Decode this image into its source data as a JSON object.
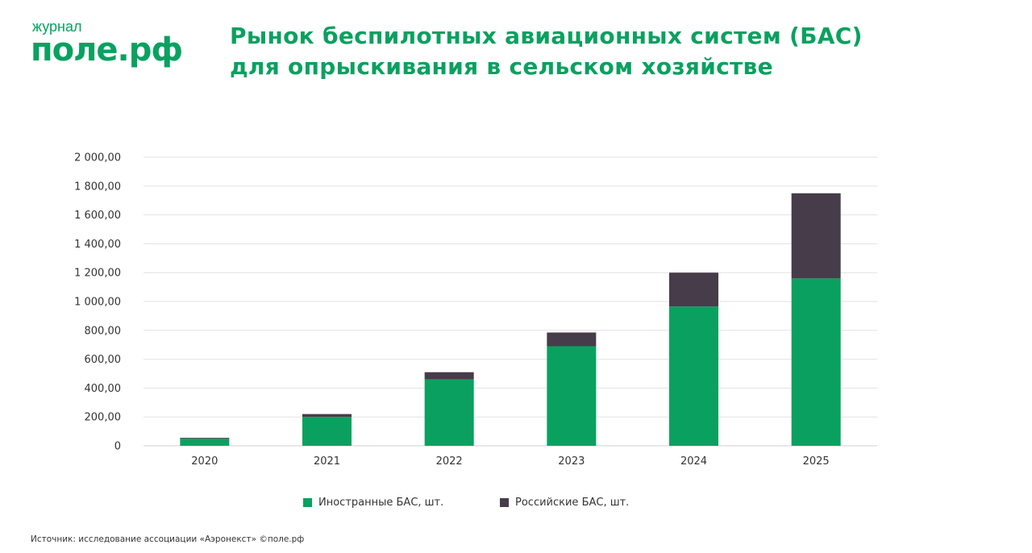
{
  "logo": {
    "small": "журнал",
    "big": "поле.рф"
  },
  "title": {
    "line1": "Рынок беспилотных авиационных систем (БАС)",
    "line2": "для опрыскивания в сельском хозяйстве"
  },
  "source": "Источник: исследование ассоциации «Аэронекст»  ©поле.рф",
  "colors": {
    "brand": "#0aa160",
    "foreign": "#0aa160",
    "russian": "#473c4a",
    "grid": "#e2e2e2",
    "axis_text": "#333333"
  },
  "chart_data": {
    "type": "bar",
    "stacked": true,
    "categories": [
      "2020",
      "2021",
      "2022",
      "2023",
      "2024",
      "2025"
    ],
    "series": [
      {
        "name": "Иностранные БАС, шт.",
        "values": [
          50,
          200,
          460,
          690,
          965,
          1160
        ]
      },
      {
        "name": "Российские БАС, шт.",
        "values": [
          5,
          20,
          50,
          95,
          235,
          590
        ]
      }
    ],
    "ylim": [
      0,
      2000
    ],
    "yticks": [
      0,
      200,
      400,
      600,
      800,
      1000,
      1200,
      1400,
      1600,
      1800,
      2000
    ],
    "ytick_labels": [
      "0",
      "200,00",
      "400,00",
      "600,00",
      "800,00",
      "1 000,00",
      "1 200,00",
      "1 400,00",
      "1 600,00",
      "1 800,00",
      "2 000,00"
    ],
    "grid": true,
    "legend_position": "bottom"
  }
}
